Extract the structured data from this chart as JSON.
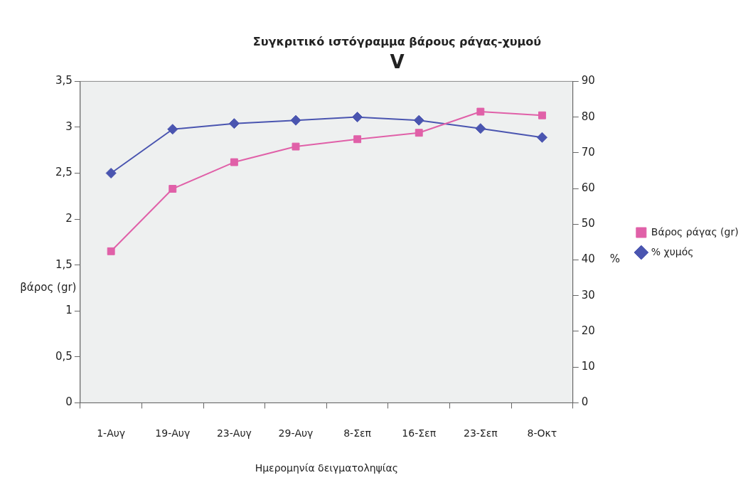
{
  "chart_data": {
    "type": "line",
    "title": "Συγκριτικό ιστόγραμμα βάρους ράγας-χυμού",
    "subtitle": "V",
    "xlabel": "Ημερομηνία δειγματοληψίας",
    "ylabel": "βάρος (gr)",
    "y2label": "%",
    "categories": [
      "1-Αυγ",
      "19-Αυγ",
      "23-Αυγ",
      "29-Αυγ",
      "8-Σεπ",
      "16-Σεπ",
      "23-Σεπ",
      "8-Οκτ"
    ],
    "series": [
      {
        "name": "Βάρος ράγας (gr)",
        "color": "#e060a8",
        "marker": "square",
        "values": [
          1.65,
          2.33,
          2.62,
          2.79,
          2.87,
          2.94,
          3.17,
          3.13
        ]
      },
      {
        "name": "% χυμός",
        "color": "#4a55b0",
        "marker": "diamond",
        "axis": "y2",
        "values": [
          64.3,
          76.6,
          78.2,
          79.1,
          80,
          79.1,
          76.8,
          74.3
        ]
      }
    ],
    "ylim": [
      0,
      3.5
    ],
    "yticks": [
      {
        "value": 0,
        "label": "0"
      },
      {
        "value": 0.5,
        "label": "0,5"
      },
      {
        "value": 1,
        "label": "1"
      },
      {
        "value": 1.5,
        "label": "1,5"
      },
      {
        "value": 2,
        "label": "2"
      },
      {
        "value": 2.5,
        "label": "2,5"
      },
      {
        "value": 3,
        "label": "3"
      },
      {
        "value": 3.5,
        "label": "3,5"
      }
    ],
    "y2lim": [
      0,
      90
    ],
    "y2ticks": [
      0,
      10,
      20,
      30,
      40,
      50,
      60,
      70,
      80,
      90
    ],
    "grid": false,
    "legend": "right",
    "line_style": "solid"
  }
}
